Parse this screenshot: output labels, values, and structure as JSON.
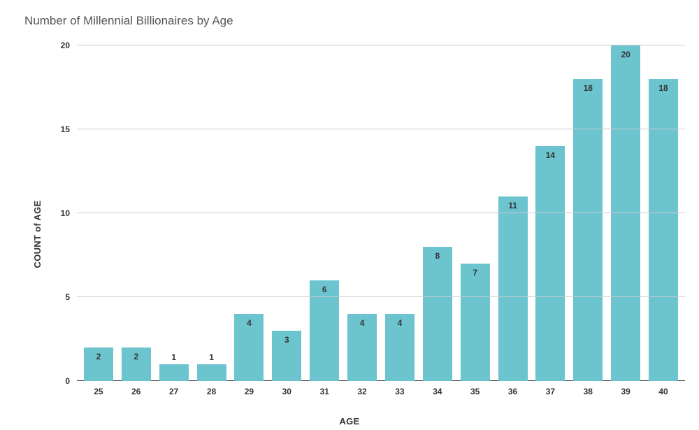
{
  "chart": {
    "type": "bar",
    "title": "Number of Millennial Billionaires by Age",
    "title_fontsize": 17,
    "title_color": "#555555",
    "xlabel": "AGE",
    "ylabel": "COUNT of AGE",
    "label_fontsize": 13,
    "label_fontweight": 700,
    "label_color": "#333333",
    "categories": [
      "25",
      "26",
      "27",
      "28",
      "29",
      "30",
      "31",
      "32",
      "33",
      "34",
      "35",
      "36",
      "37",
      "38",
      "39",
      "40"
    ],
    "values": [
      2,
      2,
      1,
      1,
      4,
      3,
      6,
      4,
      4,
      8,
      7,
      11,
      14,
      18,
      20,
      18
    ],
    "bar_color": "#6cc4cf",
    "bar_width": 0.78,
    "ylim": [
      0,
      20
    ],
    "ytick_step": 5,
    "yticks": [
      0,
      5,
      10,
      15,
      20
    ],
    "grid_color": "#cccccc",
    "baseline_color": "#333333",
    "background_color": "#ffffff",
    "tick_fontsize": 12,
    "tick_fontweight": 700,
    "tick_color": "#333333",
    "value_label_fontsize": 12,
    "value_label_fontweight": 700,
    "value_label_color": "#333333",
    "value_label_threshold_for_above": 2
  }
}
